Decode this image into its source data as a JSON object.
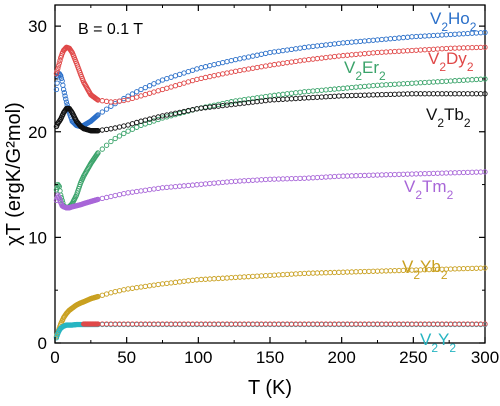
{
  "chart_data": {
    "type": "scatter",
    "xlabel": "T (K)",
    "ylabel": "χT (ergK/G²mol)",
    "xlim": [
      0,
      300
    ],
    "ylim": [
      0,
      32
    ],
    "xticks": [
      0,
      50,
      100,
      150,
      200,
      250,
      300
    ],
    "yticks": [
      0,
      10,
      20,
      30
    ],
    "grid": false,
    "legend": "inline labels at right",
    "annotation": "B = 0.1 T",
    "marker": "open-circle",
    "series": [
      {
        "name": "V2Ho2",
        "label_main": [
          "V",
          "Ho"
        ],
        "color": "#2a6fc9",
        "x": [
          1,
          2,
          3,
          4,
          5,
          6,
          8,
          10,
          12,
          15,
          18,
          20,
          25,
          30,
          40,
          50,
          60,
          75,
          100,
          125,
          150,
          175,
          200,
          225,
          250,
          275,
          300
        ],
        "y": [
          24.0,
          25.2,
          25.5,
          25.3,
          24.8,
          24.0,
          22.8,
          21.8,
          21.0,
          20.6,
          20.5,
          20.6,
          21.0,
          21.6,
          22.5,
          23.3,
          24.0,
          24.9,
          26.0,
          26.8,
          27.5,
          28.0,
          28.4,
          28.7,
          29.0,
          29.2,
          29.4
        ]
      },
      {
        "name": "V2Dy2",
        "label_main": [
          "V",
          "Dy"
        ],
        "color": "#e04848",
        "x": [
          1,
          2,
          3,
          4,
          5,
          6,
          8,
          10,
          12,
          15,
          18,
          20,
          25,
          30,
          40,
          50,
          60,
          75,
          100,
          125,
          150,
          175,
          200,
          225,
          250,
          275,
          300
        ],
        "y": [
          25.5,
          26.0,
          26.5,
          27.0,
          27.4,
          27.7,
          28.0,
          27.9,
          27.5,
          26.5,
          25.4,
          24.7,
          23.5,
          23.0,
          22.8,
          23.0,
          23.4,
          24.0,
          25.0,
          25.7,
          26.3,
          26.8,
          27.2,
          27.5,
          27.7,
          27.9,
          28.0
        ]
      },
      {
        "name": "V2Er2",
        "label_main": [
          "V",
          "Er"
        ],
        "color": "#3aa36a",
        "x": [
          1,
          2,
          3,
          4,
          5,
          6,
          8,
          10,
          12,
          15,
          18,
          20,
          25,
          30,
          40,
          50,
          60,
          75,
          100,
          125,
          150,
          175,
          200,
          225,
          250,
          275,
          300
        ],
        "y": [
          14.5,
          15.0,
          14.8,
          14.0,
          13.5,
          13.0,
          12.8,
          12.9,
          13.2,
          14.0,
          15.2,
          15.8,
          17.0,
          18.0,
          19.2,
          20.0,
          20.6,
          21.3,
          22.2,
          22.9,
          23.4,
          23.8,
          24.1,
          24.4,
          24.6,
          24.8,
          25.0
        ]
      },
      {
        "name": "V2Tb2",
        "label_main": [
          "V",
          "Tb"
        ],
        "color": "#111111",
        "x": [
          1,
          2,
          3,
          4,
          5,
          6,
          8,
          10,
          12,
          15,
          18,
          20,
          25,
          30,
          40,
          50,
          60,
          75,
          100,
          125,
          150,
          175,
          200,
          225,
          250,
          275,
          300
        ],
        "y": [
          20.5,
          20.8,
          21.0,
          21.2,
          21.5,
          21.8,
          22.2,
          22.2,
          21.8,
          21.0,
          20.5,
          20.3,
          20.1,
          20.1,
          20.3,
          20.6,
          21.0,
          21.5,
          22.2,
          22.6,
          23.0,
          23.2,
          23.4,
          23.5,
          23.6,
          23.6,
          23.6
        ]
      },
      {
        "name": "V2Tm2",
        "label_main": [
          "V",
          "Tm"
        ],
        "color": "#a866d8",
        "x": [
          1,
          2,
          3,
          4,
          5,
          6,
          8,
          10,
          12,
          15,
          18,
          20,
          25,
          30,
          40,
          50,
          60,
          75,
          100,
          125,
          150,
          175,
          200,
          225,
          250,
          275,
          300
        ],
        "y": [
          13.5,
          14.0,
          13.7,
          13.3,
          13.0,
          12.9,
          12.8,
          12.8,
          12.9,
          13.0,
          13.1,
          13.2,
          13.4,
          13.6,
          13.9,
          14.2,
          14.4,
          14.7,
          15.0,
          15.3,
          15.5,
          15.6,
          15.8,
          15.9,
          16.0,
          16.1,
          16.2
        ]
      },
      {
        "name": "V2Yb2",
        "label_main": [
          "V",
          "Yb"
        ],
        "color": "#c9a020",
        "x": [
          1,
          2,
          3,
          4,
          5,
          6,
          8,
          10,
          12,
          15,
          18,
          20,
          25,
          30,
          40,
          50,
          60,
          75,
          100,
          125,
          150,
          175,
          200,
          225,
          250,
          275,
          300
        ],
        "y": [
          0.6,
          1.0,
          1.4,
          1.8,
          2.1,
          2.4,
          2.8,
          3.1,
          3.3,
          3.6,
          3.8,
          3.9,
          4.2,
          4.4,
          4.8,
          5.1,
          5.3,
          5.6,
          6.0,
          6.2,
          6.4,
          6.6,
          6.7,
          6.8,
          6.9,
          7.0,
          7.1
        ]
      },
      {
        "name": "V2Y2",
        "label_main": [
          "V",
          "Y"
        ],
        "color": "#27b5c2",
        "x": [
          1,
          2,
          3,
          4,
          5,
          6,
          8,
          10,
          12,
          15,
          18,
          20,
          25,
          30,
          40,
          50,
          60,
          75,
          100,
          125,
          150,
          175,
          200,
          225,
          250,
          275,
          300
        ],
        "y": [
          0.5,
          0.9,
          1.2,
          1.4,
          1.5,
          1.6,
          1.7,
          1.7,
          1.7,
          1.75,
          1.75,
          1.75,
          1.75,
          1.75,
          1.75,
          1.75,
          1.75,
          1.75,
          1.75,
          1.75,
          1.75,
          1.75,
          1.75,
          1.75,
          1.75,
          1.75,
          1.75
        ]
      },
      {
        "name": "V2Y2 (red overlay)",
        "label_main": [],
        "color": "#e04848",
        "x": [
          20,
          40,
          60,
          80,
          100,
          125,
          150,
          175,
          200,
          225,
          250,
          275,
          300
        ],
        "y": [
          1.8,
          1.8,
          1.8,
          1.8,
          1.8,
          1.8,
          1.8,
          1.8,
          1.8,
          1.8,
          1.8,
          1.8,
          1.8
        ]
      }
    ],
    "labels": [
      {
        "series": "V2Ho2",
        "sub": "2",
        "t": [
          300,
          29.3
        ]
      },
      {
        "series": "V2Dy2",
        "sub": "2",
        "t": [
          300,
          27.7
        ]
      },
      {
        "series": "V2Er2",
        "sub": "2",
        "t": [
          300,
          24.9
        ]
      },
      {
        "series": "V2Tb2",
        "sub": "2",
        "t": [
          300,
          23.5
        ]
      },
      {
        "series": "V2Tm2",
        "sub": "2",
        "t": [
          300,
          16.1
        ]
      },
      {
        "series": "V2Yb2",
        "sub": "2",
        "t": [
          300,
          7.0
        ]
      },
      {
        "series": "V2Y2",
        "sub": "2",
        "t": [
          300,
          1.8
        ]
      }
    ]
  }
}
